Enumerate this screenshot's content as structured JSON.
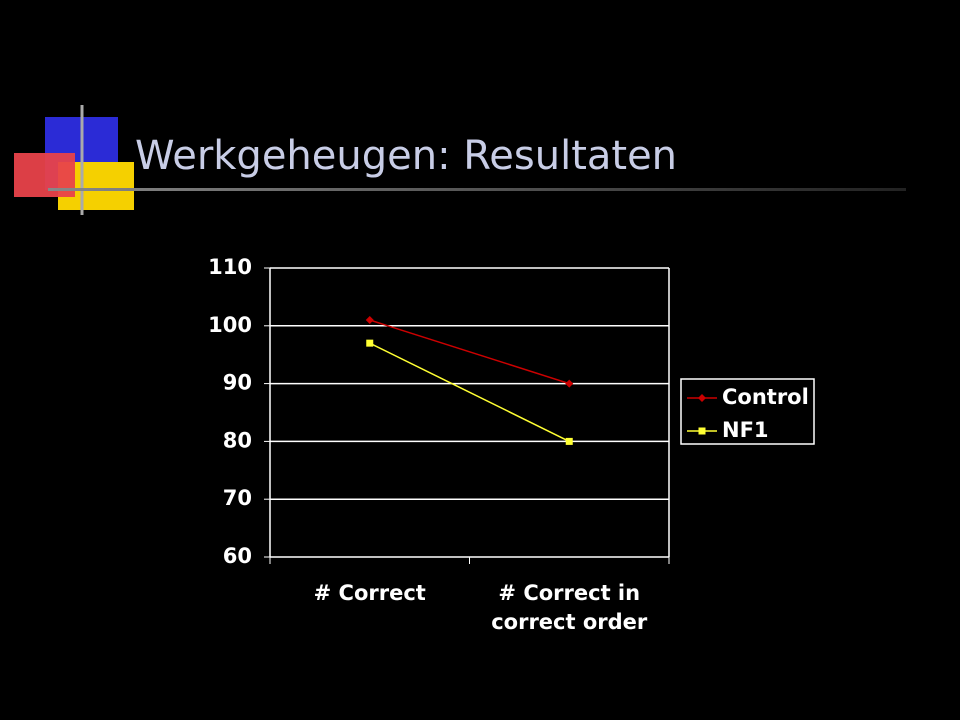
{
  "title": "Werkgeheugen: Resultaten",
  "chart_data": {
    "type": "line",
    "categories": [
      "# Correct",
      "# Correct in correct order"
    ],
    "series": [
      {
        "name": "Control",
        "color": "#cc0000",
        "marker": "diamond",
        "values": [
          101,
          90
        ]
      },
      {
        "name": "NF1",
        "color": "#ffff33",
        "marker": "square",
        "values": [
          97,
          80
        ]
      }
    ],
    "ylim": [
      60,
      110
    ],
    "yticks": [
      60,
      70,
      80,
      90,
      100,
      110
    ],
    "grid": true,
    "legend": "right"
  }
}
